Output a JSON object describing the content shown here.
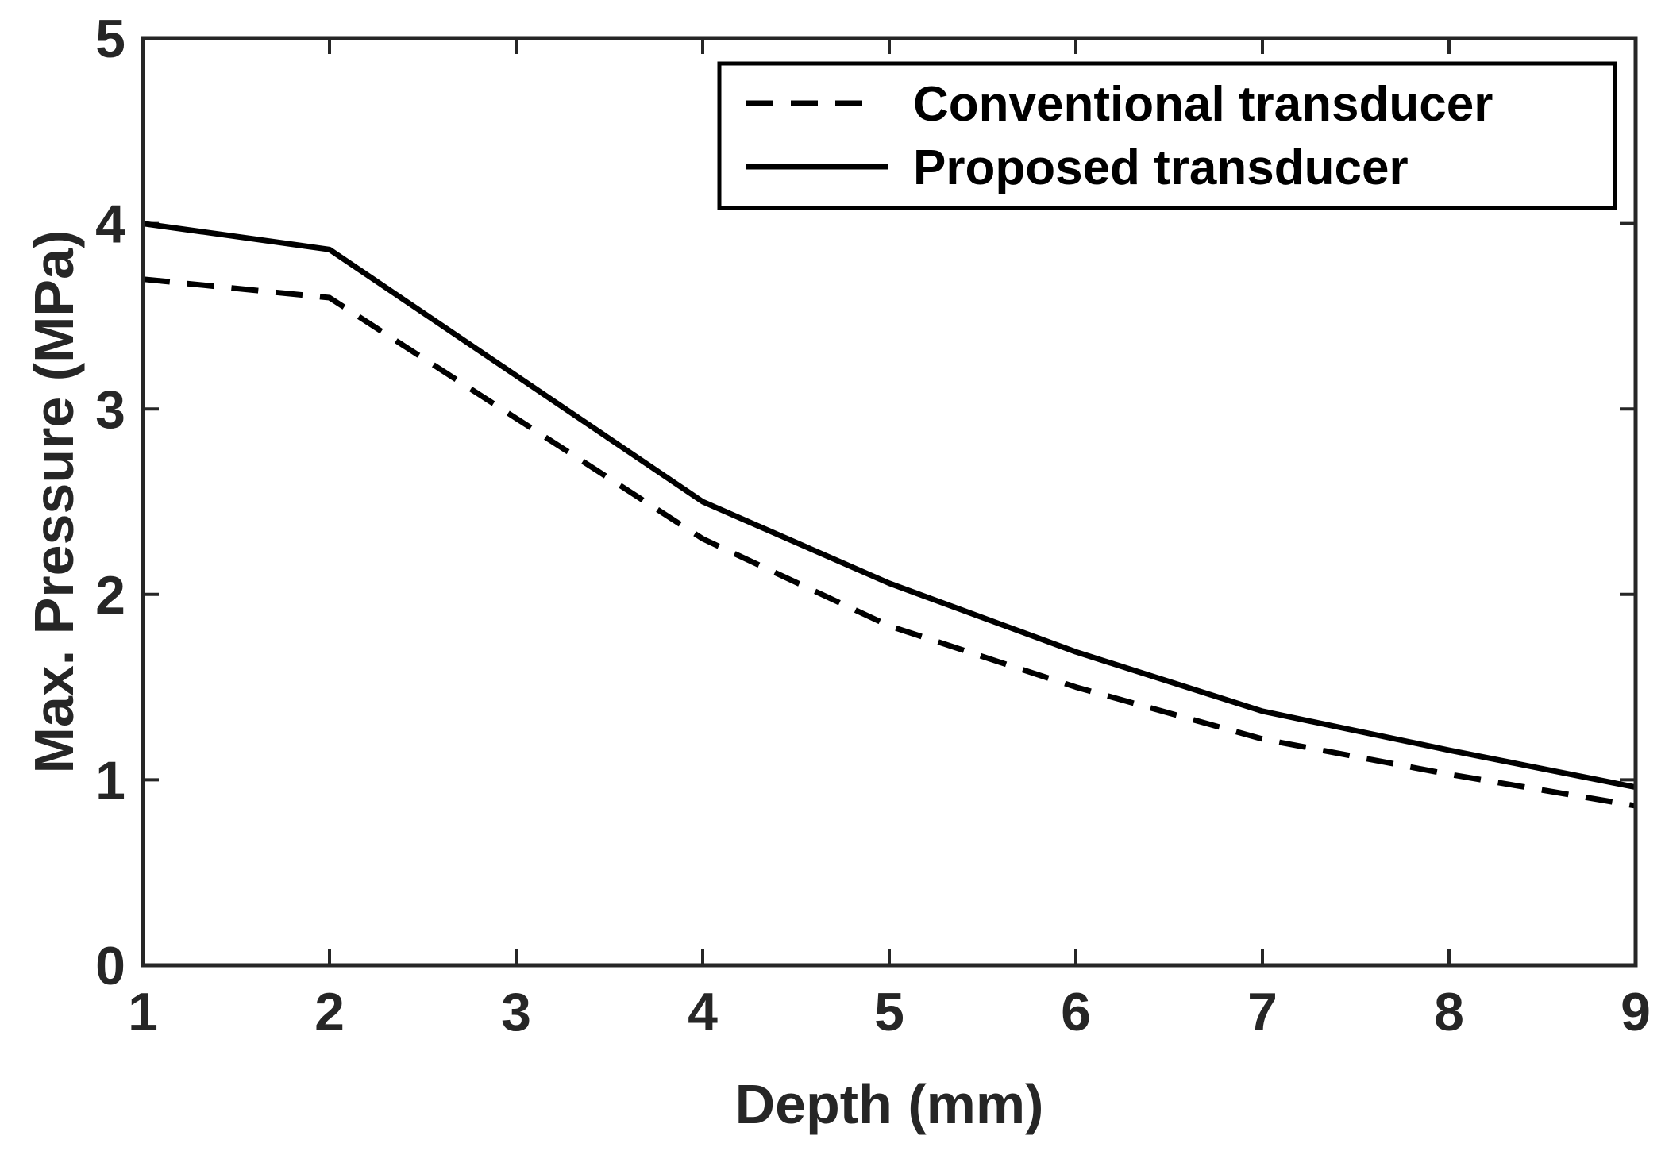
{
  "chart_data": {
    "type": "line",
    "title": "",
    "xlabel": "Depth (mm)",
    "ylabel": "Max. Pressure (MPa)",
    "xlim": [
      1,
      9
    ],
    "ylim": [
      0,
      5
    ],
    "xticks": [
      "1",
      "2",
      "3",
      "4",
      "5",
      "6",
      "7",
      "8",
      "9"
    ],
    "yticks": [
      "0",
      "1",
      "2",
      "3",
      "4",
      "5"
    ],
    "grid": false,
    "legend_position": "top-right",
    "x": [
      1,
      2,
      3,
      4,
      5,
      6,
      7,
      8,
      9
    ],
    "series": [
      {
        "name": "Conventional transducer",
        "line_style": "dashed",
        "color": "#000000",
        "values": [
          3.7,
          3.6,
          2.95,
          2.3,
          1.83,
          1.5,
          1.22,
          1.03,
          0.86
        ]
      },
      {
        "name": "Proposed transducer",
        "line_style": "solid",
        "color": "#000000",
        "values": [
          4.0,
          3.86,
          3.18,
          2.5,
          2.06,
          1.69,
          1.37,
          1.16,
          0.96
        ]
      }
    ]
  }
}
